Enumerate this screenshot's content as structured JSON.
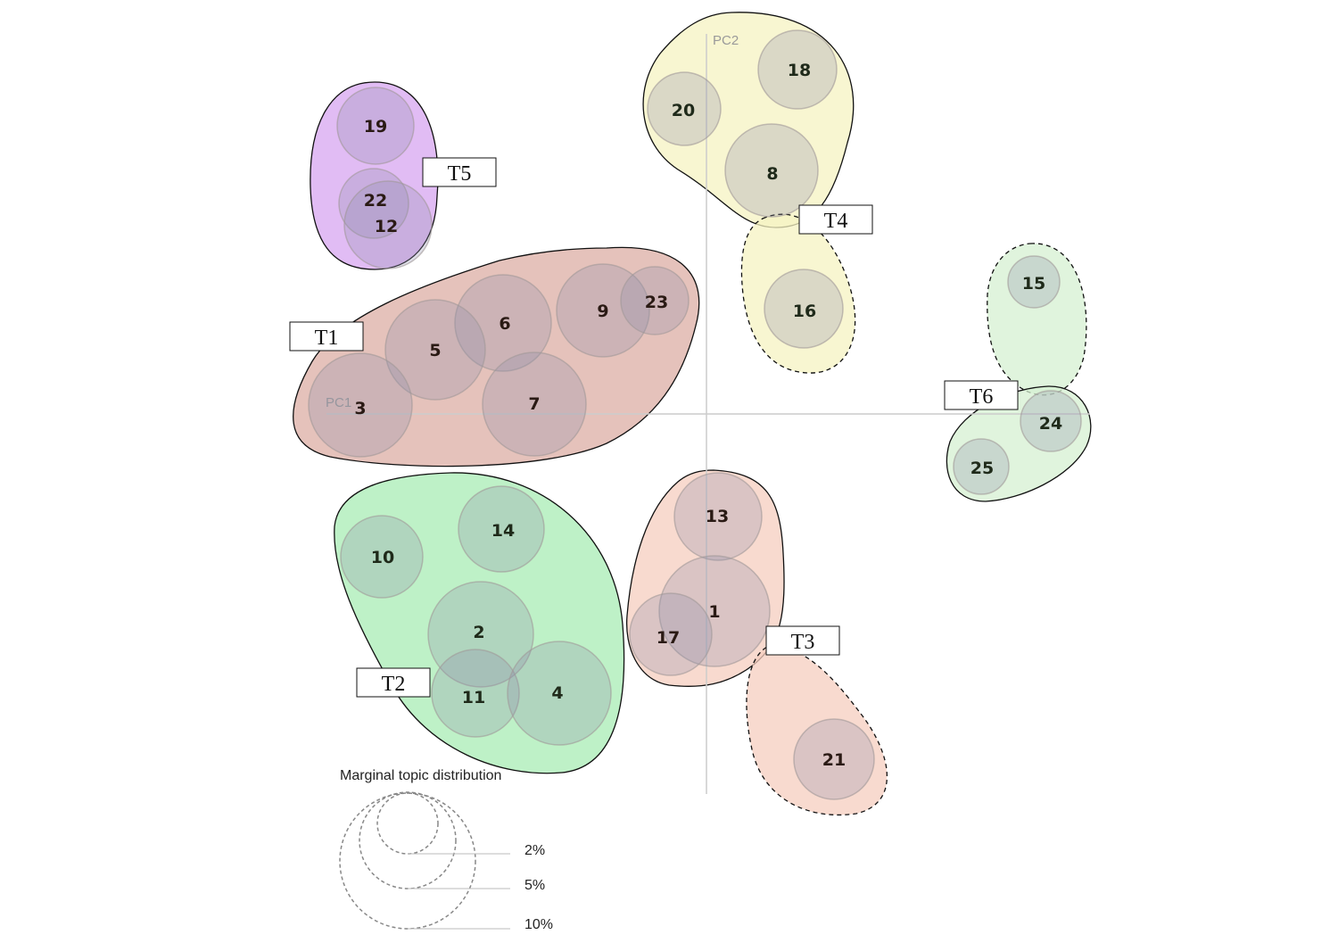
{
  "axes": {
    "pc1_label": "PC1",
    "pc2_label": "PC2"
  },
  "clusters": [
    {
      "id": "T1",
      "label": "T1",
      "fill": "#dcaea4"
    },
    {
      "id": "T2",
      "label": "T2",
      "fill": "#a8ecb4"
    },
    {
      "id": "T3",
      "label": "T3",
      "fill": "#f6cdbf"
    },
    {
      "id": "T4",
      "label": "T4",
      "fill": "#f6f3c2"
    },
    {
      "id": "T5",
      "label": "T5",
      "fill": "#d7a5f0"
    },
    {
      "id": "T6",
      "label": "T6",
      "fill": "#d6f0d2"
    }
  ],
  "topics": [
    {
      "id": "1",
      "cluster": "T3"
    },
    {
      "id": "2",
      "cluster": "T2"
    },
    {
      "id": "3",
      "cluster": "T1"
    },
    {
      "id": "4",
      "cluster": "T2"
    },
    {
      "id": "5",
      "cluster": "T1"
    },
    {
      "id": "6",
      "cluster": "T1"
    },
    {
      "id": "7",
      "cluster": "T1"
    },
    {
      "id": "8",
      "cluster": "T4"
    },
    {
      "id": "9",
      "cluster": "T1"
    },
    {
      "id": "10",
      "cluster": "T2"
    },
    {
      "id": "11",
      "cluster": "T2"
    },
    {
      "id": "12",
      "cluster": "T5"
    },
    {
      "id": "13",
      "cluster": "T3"
    },
    {
      "id": "14",
      "cluster": "T2"
    },
    {
      "id": "15",
      "cluster": "T6"
    },
    {
      "id": "16",
      "cluster": "T4"
    },
    {
      "id": "17",
      "cluster": "T3"
    },
    {
      "id": "18",
      "cluster": "T4"
    },
    {
      "id": "19",
      "cluster": "T5"
    },
    {
      "id": "20",
      "cluster": "T4"
    },
    {
      "id": "21",
      "cluster": "T3"
    },
    {
      "id": "22",
      "cluster": "T5"
    },
    {
      "id": "23",
      "cluster": "T1"
    },
    {
      "id": "24",
      "cluster": "T6"
    },
    {
      "id": "25",
      "cluster": "T6"
    }
  ],
  "legend": {
    "title": "Marginal topic distribution",
    "items": [
      "2%",
      "5%",
      "10%"
    ]
  },
  "colors": {
    "topic_circle_fill": "#8c8ca8",
    "topic_circle_stroke": "#a09898",
    "axis": "#cccccc",
    "legend_stroke": "#888888"
  }
}
